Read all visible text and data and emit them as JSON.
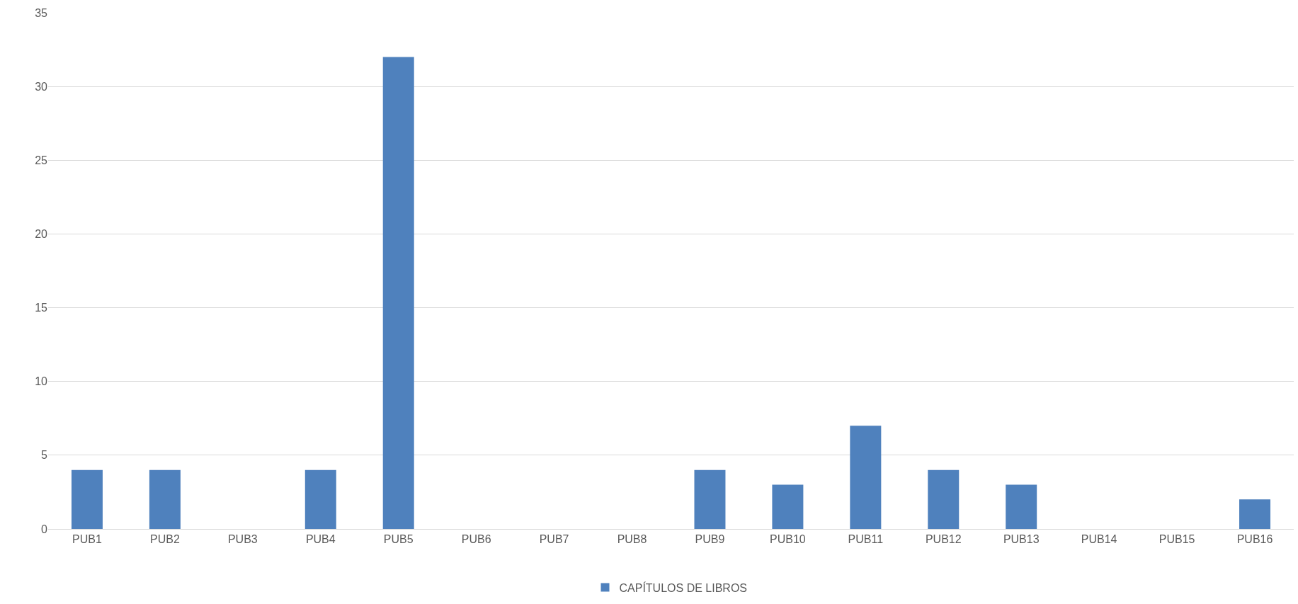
{
  "chart_data": {
    "type": "bar",
    "categories": [
      "PUB1",
      "PUB2",
      "PUB3",
      "PUB4",
      "PUB5",
      "PUB6",
      "PUB7",
      "PUB8",
      "PUB9",
      "PUB10",
      "PUB11",
      "PUB12",
      "PUB13",
      "PUB14",
      "PUB15",
      "PUB16"
    ],
    "series": [
      {
        "name": "CAPÍTULOS DE LIBROS",
        "color": "#4f81bd",
        "values": [
          4,
          4,
          0,
          4,
          32,
          0,
          0,
          0,
          4,
          3,
          7,
          4,
          3,
          0,
          0,
          2
        ]
      }
    ],
    "ylim": [
      0,
      35
    ],
    "yticks": [
      0,
      5,
      10,
      15,
      20,
      25,
      30,
      35
    ],
    "grid": "y",
    "legend": "bottom"
  }
}
